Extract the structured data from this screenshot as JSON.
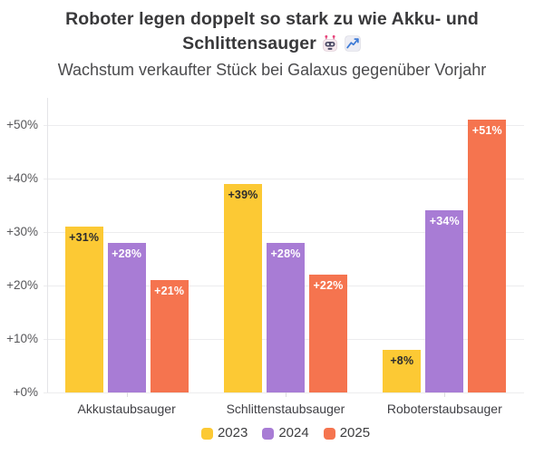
{
  "header": {
    "title_line1": "Roboter legen doppelt so stark zu wie Akku- und",
    "title_line2": "Schlittensauger",
    "title_emojis": [
      "robot-face",
      "chart-increasing"
    ],
    "subtitle": "Wachstum verkaufter Stück bei Galaxus gegenüber Vorjahr"
  },
  "chart_data": {
    "type": "bar",
    "title": "Roboter legen doppelt so stark zu wie Akku- und Schlittensauger",
    "subtitle": "Wachstum verkaufter Stück bei Galaxus gegenüber Vorjahr",
    "categories": [
      "Akkustaubsauger",
      "Schlittenstaubsauger",
      "Roboterstaubsauger"
    ],
    "series": [
      {
        "name": "2023",
        "color": "#FCC934",
        "label_color": "#2B2B2E",
        "values": [
          31,
          39,
          8
        ]
      },
      {
        "name": "2024",
        "color": "#A87CD5",
        "label_color": "#FFFFFF",
        "values": [
          28,
          28,
          34
        ]
      },
      {
        "name": "2025",
        "color": "#F5744F",
        "label_color": "#FFFFFF",
        "values": [
          21,
          22,
          51
        ]
      }
    ],
    "unit": "%",
    "data_label_format": "+{value}%",
    "xlabel": "",
    "ylabel": "",
    "y_ticks": [
      {
        "label": "+0%",
        "value": 0
      },
      {
        "label": "+10%",
        "value": 10
      },
      {
        "label": "+20%",
        "value": 20
      },
      {
        "label": "+30%",
        "value": 30
      },
      {
        "label": "+40%",
        "value": 40
      },
      {
        "label": "+50%",
        "value": 50
      }
    ],
    "ylim": [
      0,
      55
    ],
    "grid": true,
    "legend_position": "bottom",
    "colors": {
      "grid": "#ECECEE",
      "axis": "#E4E4E7",
      "tick_label": "#57575A",
      "category_label": "#3F3F44",
      "legend_label": "#3E3E40",
      "title": "#39393B",
      "subtitle": "#4B4B4D",
      "background": "#FFFFFF"
    }
  }
}
